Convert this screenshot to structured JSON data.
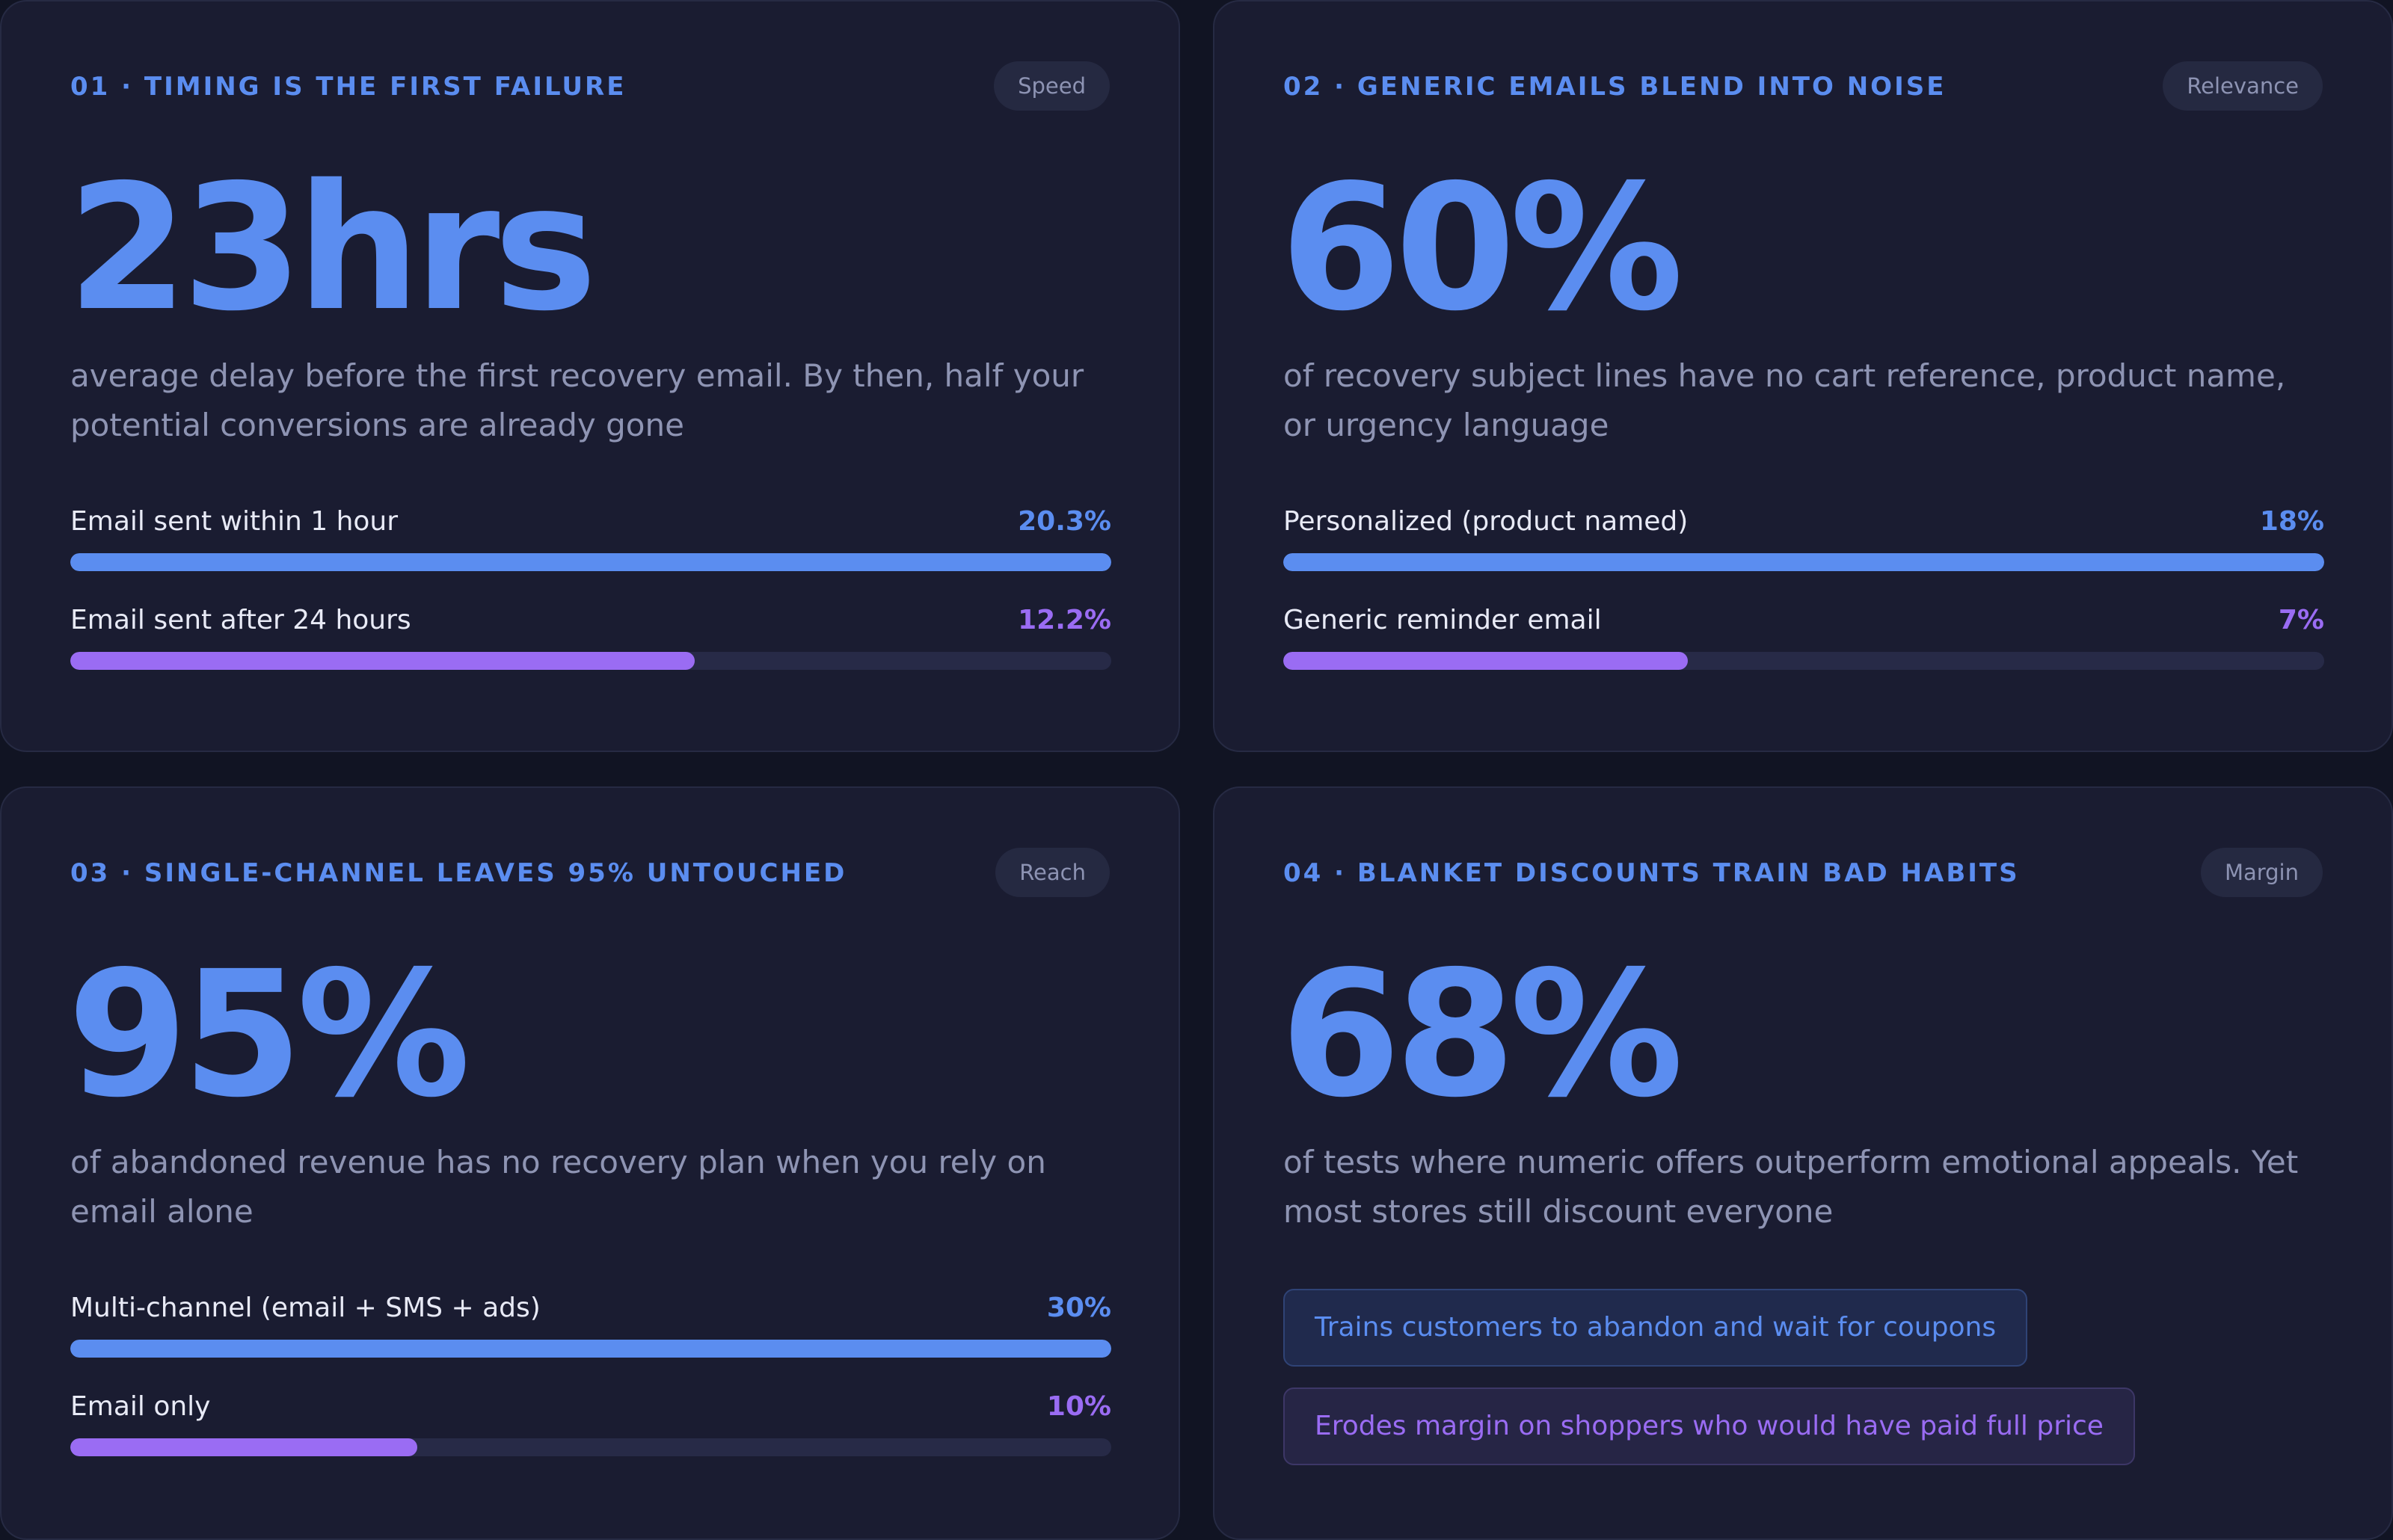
{
  "colors": {
    "accent_blue": "#5b8df0",
    "accent_purple": "#9a6cf3",
    "card_bg": "#1a1c31",
    "page_bg": "#111423",
    "track": "#272a47"
  },
  "cards": [
    {
      "eyebrow": "01 · TIMING IS THE FIRST FAILURE",
      "pill": "Speed",
      "big_stat": "23hrs",
      "description": "average delay before the first recovery email. By then, half your potential conversions are already gone",
      "bars": [
        {
          "label": "Email sent within 1 hour",
          "value": "20.3%",
          "fill_percent": 100,
          "color": "#5b8df0"
        },
        {
          "label": "Email sent after 24 hours",
          "value": "12.2%",
          "fill_percent": 60,
          "color": "#9a6cf3"
        }
      ]
    },
    {
      "eyebrow": "02 · GENERIC EMAILS BLEND INTO NOISE",
      "pill": "Relevance",
      "big_stat": "60%",
      "description": "of recovery subject lines have no cart reference, product name, or urgency language",
      "bars": [
        {
          "label": "Personalized (product named)",
          "value": "18%",
          "fill_percent": 100,
          "color": "#5b8df0"
        },
        {
          "label": "Generic reminder email",
          "value": "7%",
          "fill_percent": 38.9,
          "color": "#9a6cf3"
        }
      ]
    },
    {
      "eyebrow": "03 · SINGLE-CHANNEL LEAVES 95% UNTOUCHED",
      "pill": "Reach",
      "big_stat": "95%",
      "description": "of abandoned revenue has no recovery plan when you rely on email alone",
      "bars": [
        {
          "label": "Multi-channel (email + SMS + ads)",
          "value": "30%",
          "fill_percent": 100,
          "color": "#5b8df0"
        },
        {
          "label": "Email only",
          "value": "10%",
          "fill_percent": 33.3,
          "color": "#9a6cf3"
        }
      ]
    },
    {
      "eyebrow": "04 · BLANKET DISCOUNTS TRAIN BAD HABITS",
      "pill": "Margin",
      "big_stat": "68%",
      "description": "of tests where numeric offers outperform emotional appeals. Yet most stores still discount everyone",
      "tags": [
        {
          "text": "Trains customers to abandon and wait for coupons",
          "color": "#5b8df0"
        },
        {
          "text": "Erodes margin on shoppers who would have paid full price",
          "color": "#9a6cf3"
        }
      ]
    }
  ]
}
